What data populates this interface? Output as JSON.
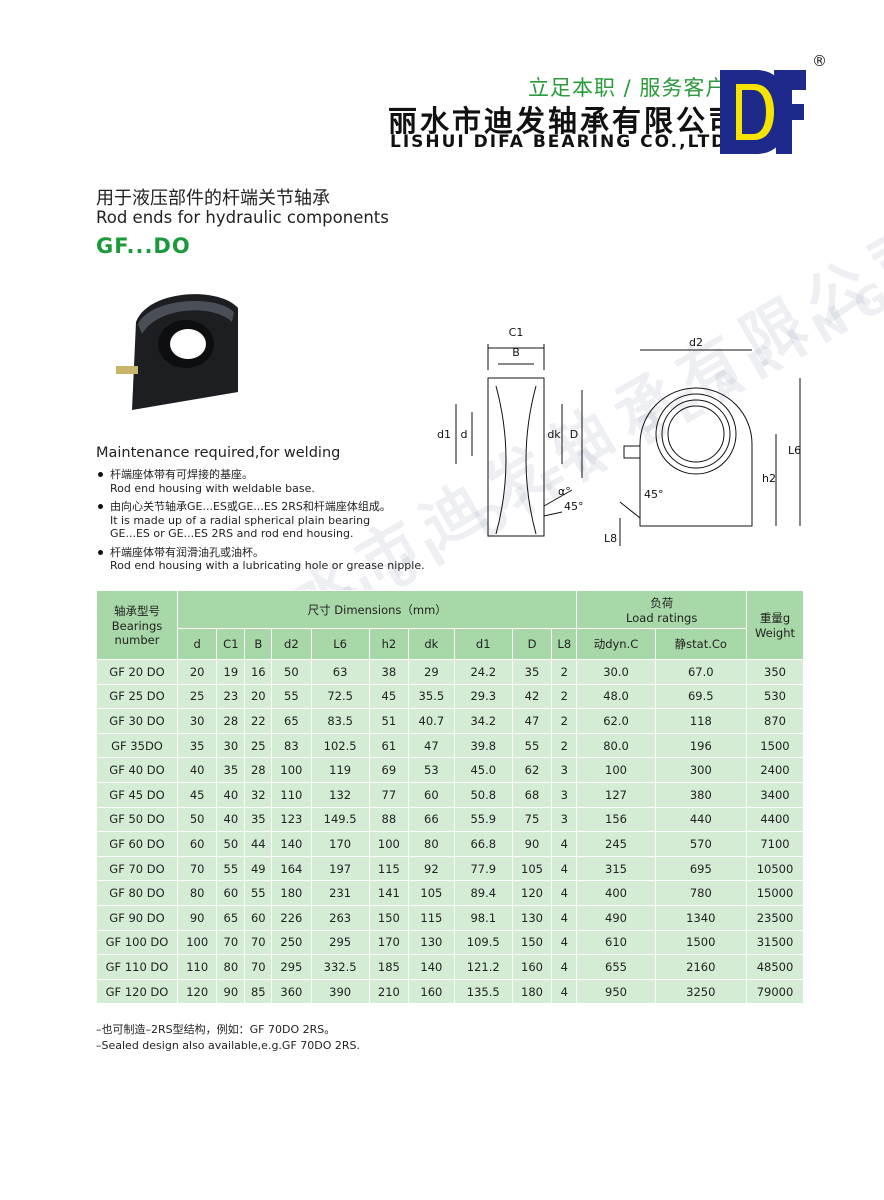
{
  "header": {
    "slogan": "立足本职 / 服务客户",
    "company_cn": "丽水市迪发轴承有限公司",
    "company_en": "LISHUI DIFA BEARING CO.,LTD.",
    "registered": "®"
  },
  "product": {
    "title_cn": "用于液压部件的杆端关节轴承",
    "title_en": "Rod ends for hydraulic components",
    "model": "GF...DO"
  },
  "features": {
    "heading": "Maintenance required,for welding",
    "items": [
      {
        "cn": "杆端座体带有可焊接的基座。",
        "en": [
          "Rod end housing with weldable base."
        ]
      },
      {
        "cn": "由向心关节轴承GE...ES或GE...ES 2RS和杆端座体组成。",
        "en": [
          "It is made up of a radial spherical plain bearing",
          "GE...ES or GE...ES 2RS and rod end housing."
        ]
      },
      {
        "cn": "杆端座体带有润滑油孔或油杯。",
        "en": [
          "Rod end housing with a lubricating hole or grease nipple."
        ]
      }
    ]
  },
  "drawing": {
    "section_labels": [
      "C1",
      "B",
      "d1",
      "d",
      "dk",
      "D",
      "α°",
      "45°"
    ],
    "front_labels": [
      "d2",
      "L6",
      "h2",
      "45°",
      "L8"
    ]
  },
  "table": {
    "header": {
      "bearing_cn": "轴承型号",
      "bearing_en": "Bearings number",
      "dimensions": "尺寸 Dimensions（mm）",
      "load_cn": "负荷",
      "load_en": "Load ratings",
      "weight_cn": "重量g",
      "weight_en": "Weight",
      "columns": [
        "d",
        "C1",
        "B",
        "d2",
        "L6",
        "h2",
        "dk",
        "d1",
        "D",
        "L8",
        "动dyn.C",
        "静stat.Co"
      ]
    },
    "rows": [
      [
        "GF 20 DO",
        "20",
        "19",
        "16",
        "50",
        "63",
        "38",
        "29",
        "24.2",
        "35",
        "2",
        "30.0",
        "67.0",
        "350"
      ],
      [
        "GF 25 DO",
        "25",
        "23",
        "20",
        "55",
        "72.5",
        "45",
        "35.5",
        "29.3",
        "42",
        "2",
        "48.0",
        "69.5",
        "530"
      ],
      [
        "GF 30 DO",
        "30",
        "28",
        "22",
        "65",
        "83.5",
        "51",
        "40.7",
        "34.2",
        "47",
        "2",
        "62.0",
        "118",
        "870"
      ],
      [
        "GF 35DO",
        "35",
        "30",
        "25",
        "83",
        "102.5",
        "61",
        "47",
        "39.8",
        "55",
        "2",
        "80.0",
        "196",
        "1500"
      ],
      [
        "GF 40 DO",
        "40",
        "35",
        "28",
        "100",
        "119",
        "69",
        "53",
        "45.0",
        "62",
        "3",
        "100",
        "300",
        "2400"
      ],
      [
        "GF 45 DO",
        "45",
        "40",
        "32",
        "110",
        "132",
        "77",
        "60",
        "50.8",
        "68",
        "3",
        "127",
        "380",
        "3400"
      ],
      [
        "GF 50 DO",
        "50",
        "40",
        "35",
        "123",
        "149.5",
        "88",
        "66",
        "55.9",
        "75",
        "3",
        "156",
        "440",
        "4400"
      ],
      [
        "GF 60 DO",
        "60",
        "50",
        "44",
        "140",
        "170",
        "100",
        "80",
        "66.8",
        "90",
        "4",
        "245",
        "570",
        "7100"
      ],
      [
        "GF 70 DO",
        "70",
        "55",
        "49",
        "164",
        "197",
        "115",
        "92",
        "77.9",
        "105",
        "4",
        "315",
        "695",
        "10500"
      ],
      [
        "GF 80 DO",
        "80",
        "60",
        "55",
        "180",
        "231",
        "141",
        "105",
        "89.4",
        "120",
        "4",
        "400",
        "780",
        "15000"
      ],
      [
        "GF 90 DO",
        "90",
        "65",
        "60",
        "226",
        "263",
        "150",
        "115",
        "98.1",
        "130",
        "4",
        "490",
        "1340",
        "23500"
      ],
      [
        "GF 100 DO",
        "100",
        "70",
        "70",
        "250",
        "295",
        "170",
        "130",
        "109.5",
        "150",
        "4",
        "610",
        "1500",
        "31500"
      ],
      [
        "GF 110 DO",
        "110",
        "80",
        "70",
        "295",
        "332.5",
        "185",
        "140",
        "121.2",
        "160",
        "4",
        "655",
        "2160",
        "48500"
      ],
      [
        "GF 120 DO",
        "120",
        "90",
        "85",
        "360",
        "390",
        "210",
        "160",
        "135.5",
        "180",
        "4",
        "950",
        "3250",
        "79000"
      ]
    ]
  },
  "notes": [
    "–也可制造–2RS型结构，例如：GF 70DO 2RS。",
    "–Sealed design also available,e.g.GF 70DO 2RS."
  ]
}
